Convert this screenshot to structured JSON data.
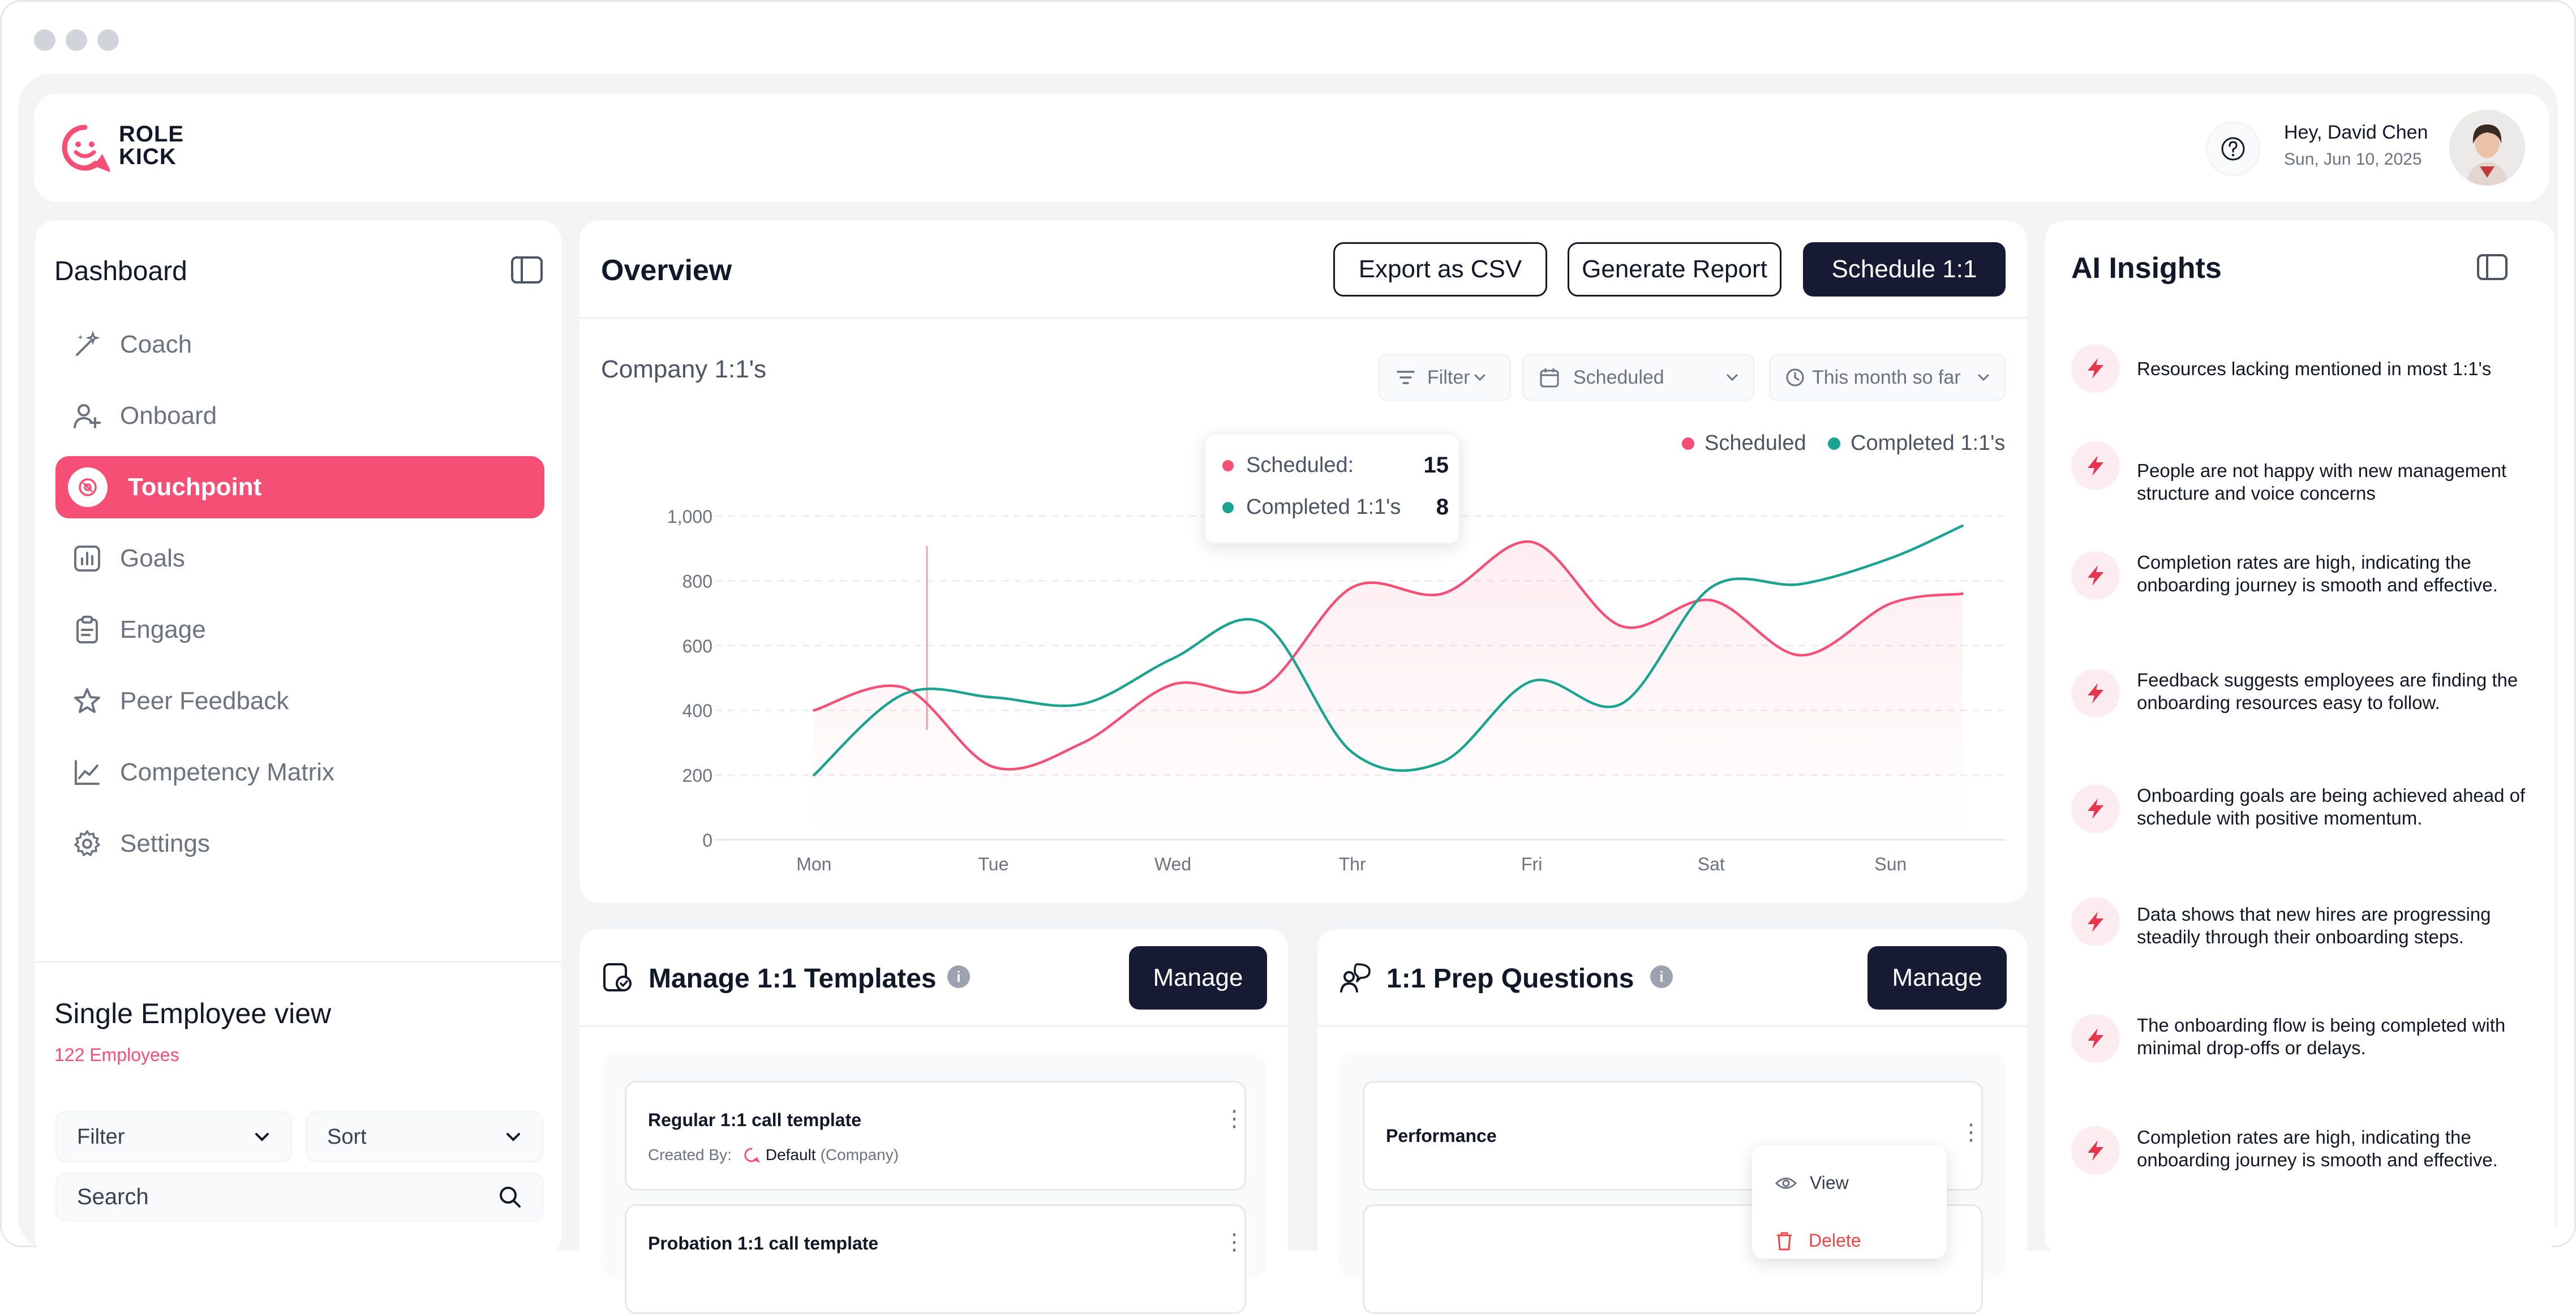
{
  "brand": {
    "line1": "ROLE",
    "line2": "KICK",
    "accent": "#f64f75",
    "dark": "#161b33",
    "teal": "#1aa48f"
  },
  "user": {
    "greeting": "Hey, David Chen",
    "date": "Sun, Jun 10, 2025"
  },
  "sidebar": {
    "title": "Dashboard",
    "items": [
      {
        "label": "Coach",
        "icon": "magic-wand-icon",
        "active": false
      },
      {
        "label": "Onboard",
        "icon": "user-plus-icon",
        "active": false
      },
      {
        "label": "Touchpoint",
        "icon": "target-icon",
        "active": true
      },
      {
        "label": "Goals",
        "icon": "bar-chart-icon",
        "active": false
      },
      {
        "label": "Engage",
        "icon": "clipboard-icon",
        "active": false
      },
      {
        "label": "Peer Feedback",
        "icon": "star-icon",
        "active": false
      },
      {
        "label": "Competency Matrix",
        "icon": "line-chart-icon",
        "active": false
      },
      {
        "label": "Settings",
        "icon": "gear-icon",
        "active": false
      }
    ],
    "employee_view": {
      "title": "Single Employee view",
      "count": "122 Employees",
      "filter_label": "Filter",
      "sort_label": "Sort",
      "search_placeholder": "Search"
    }
  },
  "overview": {
    "title": "Overview",
    "export_label": "Export as CSV",
    "report_label": "Generate Report",
    "schedule_label": "Schedule 1:1",
    "subtitle": "Company 1:1's",
    "filter_label": "Filter",
    "status_select": "Scheduled",
    "period_select": "This month so far",
    "tooltip": {
      "scheduled_label": "Scheduled:",
      "scheduled_value": "15",
      "completed_label": "Completed 1:1's",
      "completed_value": "8"
    }
  },
  "chart_data": {
    "type": "line",
    "categories": [
      "Mon",
      "Tue",
      "Wed",
      "Thr",
      "Fri",
      "Sat",
      "Sun"
    ],
    "ylim": [
      0,
      1000
    ],
    "yticks": [
      "0",
      "200",
      "400",
      "600",
      "800",
      "1,000"
    ],
    "grid": true,
    "legend_position": "top-right",
    "series": [
      {
        "name": "Scheduled",
        "color": "#f64f75",
        "x": [
          0,
          0.5,
          1.0,
          1.5,
          2.0,
          2.5,
          3.0,
          3.5,
          4.0,
          4.5,
          5.0,
          5.5,
          6.0,
          6.4
        ],
        "y": [
          400,
          470,
          225,
          300,
          480,
          470,
          780,
          760,
          920,
          660,
          740,
          570,
          730,
          760
        ]
      },
      {
        "name": "Completed 1:1's",
        "color": "#1aa48f",
        "x": [
          0,
          0.5,
          1.0,
          1.5,
          2.0,
          2.5,
          3.0,
          3.5,
          4.0,
          4.5,
          5.0,
          5.5,
          6.0,
          6.4
        ],
        "y": [
          200,
          450,
          440,
          420,
          560,
          670,
          270,
          240,
          490,
          420,
          780,
          790,
          870,
          970
        ]
      }
    ]
  },
  "templates": {
    "title": "Manage 1:1 Templates",
    "manage_label": "Manage",
    "items": [
      {
        "name": "Regular 1:1 call template",
        "created_by_label": "Created By:",
        "creator": "Default",
        "creator_note": "(Company)"
      },
      {
        "name": "Probation 1:1 call template"
      }
    ]
  },
  "prep": {
    "title": "1:1 Prep Questions",
    "manage_label": "Manage",
    "items": [
      {
        "name": "Performance"
      }
    ],
    "menu": {
      "view_label": "View",
      "delete_label": "Delete"
    }
  },
  "ai": {
    "title": "AI Insights",
    "items": [
      "Resources lacking mentioned in most 1:1's",
      "People are not happy with new management structure and voice concerns",
      "Completion rates are high, indicating the onboarding journey is smooth and effective.",
      "Feedback suggests employees are finding the onboarding resources easy to follow.",
      "Onboarding goals are being achieved ahead of schedule with positive momentum.",
      "Data shows that new hires are progressing steadily through their onboarding steps.",
      "The onboarding flow is being completed with minimal drop-offs or delays.",
      "Completion rates are high, indicating the onboarding journey is smooth and effective."
    ]
  }
}
